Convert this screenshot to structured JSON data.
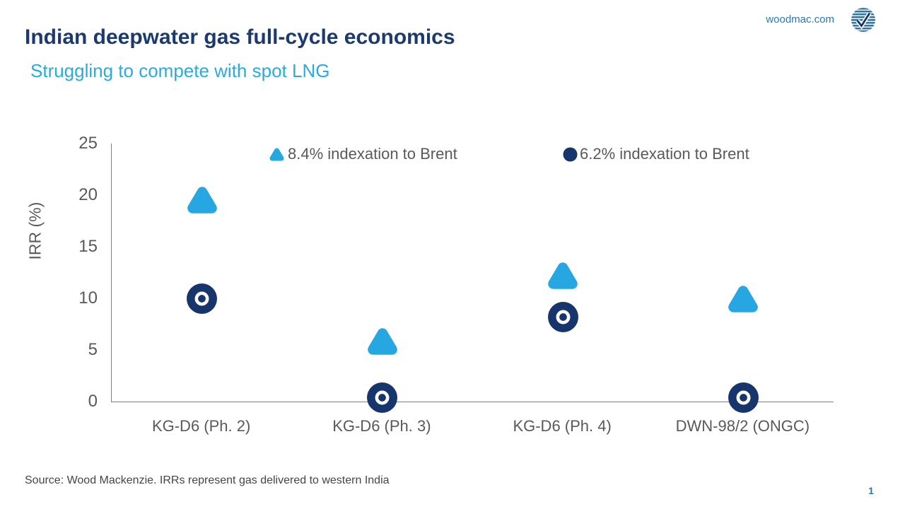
{
  "header": {
    "title": "Indian deepwater gas full-cycle economics",
    "subtitle": "Struggling to compete with spot LNG",
    "site": "woodmac.com"
  },
  "chart_data": {
    "type": "scatter",
    "title": "",
    "xlabel": "",
    "ylabel": "IRR (%)",
    "ylim": [
      0,
      25
    ],
    "yticks": [
      0,
      5,
      10,
      15,
      20,
      25
    ],
    "grid": false,
    "legend_position": "top-inside",
    "categories": [
      "KG-D6 (Ph. 2)",
      "KG-D6 (Ph. 3)",
      "KG-D6 (Ph. 4)",
      "DWN-98/2 (ONGC)"
    ],
    "series": [
      {
        "name": "8.4% indexation to Brent",
        "marker": "rounded-triangle",
        "color": "#27a7e1",
        "values": [
          19.5,
          5.8,
          12.2,
          9.9
        ]
      },
      {
        "name": "6.2% indexation to Brent",
        "marker": "donut-circle",
        "color": "#16356c",
        "values": [
          10.0,
          0.4,
          8.2,
          0.4
        ]
      }
    ]
  },
  "footer": {
    "source": "Source: Wood Mackenzie. IRRs represent gas delivered to western India",
    "page_number": "1"
  },
  "colors": {
    "title_navy": "#1b3a6e",
    "subtitle_blue": "#29abe2",
    "series_blue": "#27a7e1",
    "series_navy": "#16356c",
    "axis_text_gray": "#595959",
    "axis_line_gray": "#7f7f7f",
    "link_blue": "#2379bd",
    "page_number_blue": "#2e75b6"
  }
}
